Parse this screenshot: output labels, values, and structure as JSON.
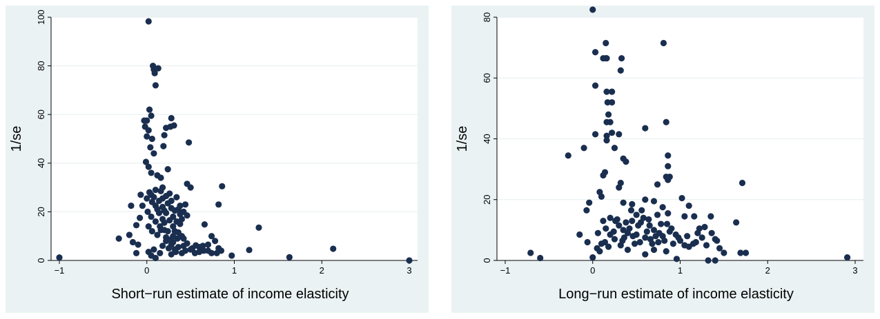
{
  "chart_data": [
    {
      "type": "scatter",
      "xlabel": "Short−run estimate of income elasticity",
      "ylabel": "1/se",
      "xlim": [
        -1,
        3
      ],
      "ylim": [
        0,
        100
      ],
      "xticks": [
        "−1",
        "0",
        "1",
        "2",
        "3"
      ],
      "yticks": [
        "0",
        "20",
        "40",
        "60",
        "80",
        "100"
      ],
      "grid": "horizontal",
      "marker_color": "#1a2e4f",
      "points": [
        [
          -1.0,
          1.2
        ],
        [
          3.0,
          0.0
        ],
        [
          2.13,
          4.8
        ],
        [
          1.63,
          1.3
        ],
        [
          1.28,
          13.5
        ],
        [
          1.17,
          4.3
        ],
        [
          0.97,
          2.0
        ],
        [
          0.86,
          30.5
        ],
        [
          0.82,
          23.0
        ],
        [
          0.82,
          5.0
        ],
        [
          0.78,
          8.0
        ],
        [
          0.74,
          10.0
        ],
        [
          0.7,
          4.0
        ],
        [
          0.66,
          14.8
        ],
        [
          0.64,
          6.0
        ],
        [
          0.6,
          3.5
        ],
        [
          0.56,
          6.2
        ],
        [
          0.52,
          5.0
        ],
        [
          0.5,
          30.0
        ],
        [
          0.48,
          48.5
        ],
        [
          0.46,
          31.5
        ],
        [
          0.44,
          23.0
        ],
        [
          0.42,
          6.0
        ],
        [
          0.4,
          10.0
        ],
        [
          0.38,
          15.0
        ],
        [
          0.35,
          9.0
        ],
        [
          0.33,
          3.5
        ],
        [
          0.31,
          55.5
        ],
        [
          0.28,
          58.5
        ],
        [
          0.27,
          55.0
        ],
        [
          0.24,
          37.5
        ],
        [
          0.22,
          54.5
        ],
        [
          0.2,
          51.5
        ],
        [
          0.19,
          47.0
        ],
        [
          0.13,
          79.0
        ],
        [
          0.07,
          80.0
        ],
        [
          0.08,
          78.5
        ],
        [
          0.09,
          77.0
        ],
        [
          0.1,
          72.0
        ],
        [
          0.02,
          98.3
        ],
        [
          0.03,
          62.0
        ],
        [
          0.05,
          59.5
        ],
        [
          0.0,
          57.5
        ],
        [
          -0.03,
          57.5
        ],
        [
          -0.02,
          55.0
        ],
        [
          0.02,
          53.5
        ],
        [
          0.0,
          51.0
        ],
        [
          0.06,
          50.0
        ],
        [
          0.04,
          46.5
        ],
        [
          0.08,
          44.0
        ],
        [
          -0.01,
          40.5
        ],
        [
          0.02,
          38.5
        ],
        [
          0.05,
          36.0
        ],
        [
          0.12,
          35.0
        ],
        [
          0.16,
          34.0
        ],
        [
          0.18,
          30.0
        ],
        [
          0.1,
          29.0
        ],
        [
          0.05,
          27.0
        ],
        [
          0.0,
          25.5
        ],
        [
          -0.07,
          27.0
        ],
        [
          -0.05,
          22.5
        ],
        [
          -0.18,
          22.5
        ],
        [
          -0.08,
          17.5
        ],
        [
          -0.12,
          14.5
        ],
        [
          -0.2,
          10.5
        ],
        [
          -0.32,
          9.0
        ],
        [
          -0.16,
          7.5
        ],
        [
          -0.1,
          6.5
        ],
        [
          -0.12,
          3.0
        ],
        [
          0.02,
          3.5
        ],
        [
          0.05,
          2.0
        ],
        [
          0.08,
          4.5
        ],
        [
          0.1,
          1.0
        ],
        [
          0.15,
          3.0
        ],
        [
          0.18,
          6.0
        ],
        [
          0.22,
          8.0
        ],
        [
          0.25,
          5.0
        ],
        [
          0.28,
          2.5
        ],
        [
          0.3,
          7.5
        ],
        [
          0.32,
          12.0
        ],
        [
          0.2,
          12.5
        ],
        [
          0.15,
          14.0
        ],
        [
          0.1,
          16.0
        ],
        [
          0.05,
          18.0
        ],
        [
          0.01,
          20.0
        ],
        [
          0.12,
          21.0
        ],
        [
          0.18,
          22.0
        ],
        [
          0.24,
          23.5
        ],
        [
          0.28,
          24.5
        ],
        [
          0.34,
          26.0
        ],
        [
          0.36,
          21.0
        ],
        [
          0.38,
          19.0
        ],
        [
          0.4,
          17.0
        ],
        [
          0.3,
          18.0
        ],
        [
          0.22,
          19.5
        ],
        [
          0.14,
          24.5
        ],
        [
          0.08,
          26.0
        ],
        [
          0.03,
          28.0
        ],
        [
          0.16,
          28.5
        ],
        [
          0.26,
          27.5
        ],
        [
          0.32,
          20.5
        ],
        [
          0.26,
          16.5
        ],
        [
          0.2,
          15.5
        ],
        [
          0.12,
          10.5
        ],
        [
          0.06,
          12.0
        ],
        [
          0.02,
          14.0
        ],
        [
          0.36,
          11.5
        ],
        [
          0.42,
          9.0
        ],
        [
          0.46,
          7.0
        ],
        [
          0.5,
          4.5
        ],
        [
          0.55,
          3.0
        ],
        [
          0.6,
          5.5
        ],
        [
          0.65,
          4.0
        ],
        [
          0.7,
          6.5
        ],
        [
          0.74,
          3.0
        ],
        [
          0.8,
          3.0
        ],
        [
          0.85,
          4.0
        ],
        [
          0.36,
          5.5
        ],
        [
          0.4,
          3.0
        ],
        [
          0.44,
          4.0
        ],
        [
          0.3,
          10.0
        ],
        [
          0.26,
          8.5
        ],
        [
          0.24,
          12.0
        ],
        [
          0.18,
          17.0
        ],
        [
          0.14,
          19.5
        ],
        [
          0.1,
          22.5
        ],
        [
          0.06,
          24.0
        ],
        [
          0.18,
          25.5
        ],
        [
          0.22,
          26.5
        ],
        [
          0.28,
          21.5
        ],
        [
          0.34,
          16.0
        ],
        [
          0.3,
          14.0
        ],
        [
          0.38,
          22.5
        ],
        [
          0.42,
          20.0
        ],
        [
          0.46,
          18.5
        ],
        [
          0.2,
          20.5
        ],
        [
          0.16,
          12.5
        ],
        [
          0.22,
          9.5
        ],
        [
          0.28,
          6.5
        ],
        [
          0.32,
          4.5
        ]
      ]
    },
    {
      "type": "scatter",
      "xlabel": "Long−run estimate of income elasticity",
      "ylabel": "1/se",
      "xlim": [
        -1,
        3
      ],
      "ylim": [
        0,
        80
      ],
      "xticks": [
        "−1",
        "0",
        "1",
        "2",
        "3"
      ],
      "yticks": [
        "0",
        "20",
        "40",
        "60",
        "80"
      ],
      "grid": "horizontal",
      "marker_color": "#1a2e4f",
      "points": [
        [
          -0.71,
          2.5
        ],
        [
          -0.6,
          0.8
        ],
        [
          -0.28,
          34.5
        ],
        [
          -0.1,
          37.0
        ],
        [
          -0.04,
          19.0
        ],
        [
          -0.07,
          16.5
        ],
        [
          -0.15,
          8.5
        ],
        [
          -0.06,
          6.0
        ],
        [
          0.0,
          82.5
        ],
        [
          0.03,
          68.5
        ],
        [
          0.12,
          66.5
        ],
        [
          0.15,
          66.5
        ],
        [
          0.15,
          71.5
        ],
        [
          0.16,
          66.5
        ],
        [
          0.33,
          66.5
        ],
        [
          0.32,
          62.5
        ],
        [
          0.81,
          71.5
        ],
        [
          0.03,
          57.5
        ],
        [
          0.16,
          55.5
        ],
        [
          0.22,
          55.5
        ],
        [
          0.17,
          52.0
        ],
        [
          0.22,
          52.0
        ],
        [
          0.18,
          48.0
        ],
        [
          0.2,
          45.5
        ],
        [
          0.16,
          45.5
        ],
        [
          0.22,
          42.0
        ],
        [
          0.03,
          41.5
        ],
        [
          0.16,
          41.0
        ],
        [
          0.3,
          41.5
        ],
        [
          0.38,
          32.5
        ],
        [
          0.35,
          33.5
        ],
        [
          0.6,
          43.5
        ],
        [
          0.84,
          45.5
        ],
        [
          0.86,
          34.5
        ],
        [
          0.86,
          31.0
        ],
        [
          0.88,
          27.5
        ],
        [
          0.86,
          26.5
        ],
        [
          0.84,
          27.5
        ],
        [
          0.74,
          25.0
        ],
        [
          0.16,
          39.5
        ],
        [
          0.14,
          29.0
        ],
        [
          0.12,
          28.0
        ],
        [
          0.1,
          21.0
        ],
        [
          0.08,
          22.5
        ],
        [
          0.25,
          37.0
        ],
        [
          0.3,
          24.0
        ],
        [
          0.32,
          25.5
        ],
        [
          0.35,
          19.0
        ],
        [
          0.45,
          18.5
        ],
        [
          0.6,
          20.0
        ],
        [
          0.7,
          19.5
        ],
        [
          0.8,
          17.5
        ],
        [
          1.02,
          20.5
        ],
        [
          1.1,
          18.0
        ],
        [
          1.05,
          14.5
        ],
        [
          1.16,
          14.5
        ],
        [
          1.35,
          14.5
        ],
        [
          1.64,
          12.5
        ],
        [
          1.71,
          25.5
        ],
        [
          1.69,
          2.5
        ],
        [
          1.75,
          2.5
        ],
        [
          1.42,
          6.5
        ],
        [
          1.4,
          0.0
        ],
        [
          1.32,
          0.0
        ],
        [
          1.5,
          2.5
        ],
        [
          1.45,
          4.0
        ],
        [
          1.3,
          5.0
        ],
        [
          1.25,
          7.5
        ],
        [
          1.2,
          9.0
        ],
        [
          1.15,
          5.5
        ],
        [
          1.1,
          4.5
        ],
        [
          1.05,
          5.0
        ],
        [
          1.0,
          6.5
        ],
        [
          0.95,
          8.5
        ],
        [
          0.9,
          10.5
        ],
        [
          0.85,
          12.0
        ],
        [
          0.8,
          8.0
        ],
        [
          0.75,
          6.0
        ],
        [
          0.7,
          10.0
        ],
        [
          0.65,
          11.5
        ],
        [
          0.6,
          7.5
        ],
        [
          0.55,
          12.5
        ],
        [
          0.5,
          8.5
        ],
        [
          0.45,
          13.0
        ],
        [
          0.4,
          9.0
        ],
        [
          0.35,
          10.0
        ],
        [
          0.3,
          11.5
        ],
        [
          0.25,
          7.0
        ],
        [
          0.2,
          8.5
        ],
        [
          0.15,
          10.5
        ],
        [
          0.1,
          5.5
        ],
        [
          0.05,
          4.0
        ],
        [
          0.0,
          1.0
        ],
        [
          0.08,
          3.0
        ],
        [
          0.14,
          6.0
        ],
        [
          0.18,
          4.5
        ],
        [
          0.24,
          9.5
        ],
        [
          0.28,
          13.5
        ],
        [
          0.32,
          5.0
        ],
        [
          0.36,
          7.5
        ],
        [
          0.42,
          10.5
        ],
        [
          0.48,
          5.5
        ],
        [
          0.52,
          11.5
        ],
        [
          0.58,
          14.0
        ],
        [
          0.62,
          9.5
        ],
        [
          0.68,
          5.5
        ],
        [
          0.72,
          8.0
        ],
        [
          0.78,
          12.0
        ],
        [
          0.82,
          6.5
        ],
        [
          0.88,
          9.5
        ],
        [
          0.92,
          5.5
        ],
        [
          0.96,
          0.5
        ],
        [
          0.98,
          7.5
        ],
        [
          1.08,
          8.0
        ],
        [
          1.18,
          6.0
        ],
        [
          1.22,
          10.5
        ],
        [
          1.28,
          11.0
        ],
        [
          1.36,
          9.0
        ],
        [
          1.4,
          7.0
        ],
        [
          0.4,
          3.5
        ],
        [
          0.6,
          2.0
        ],
        [
          0.7,
          3.5
        ],
        [
          0.84,
          3.0
        ],
        [
          0.5,
          15.0
        ],
        [
          0.44,
          16.5
        ],
        [
          0.38,
          12.5
        ],
        [
          0.26,
          13.0
        ],
        [
          0.2,
          14.0
        ],
        [
          0.12,
          13.0
        ],
        [
          0.06,
          9.0
        ],
        [
          0.64,
          13.5
        ],
        [
          0.74,
          15.0
        ],
        [
          0.86,
          15.5
        ],
        [
          0.56,
          16.5
        ],
        [
          0.34,
          6.5
        ],
        [
          0.46,
          8.0
        ],
        [
          0.54,
          6.0
        ],
        [
          0.66,
          7.0
        ],
        [
          0.76,
          9.0
        ],
        [
          2.91,
          1.0
        ]
      ]
    }
  ]
}
